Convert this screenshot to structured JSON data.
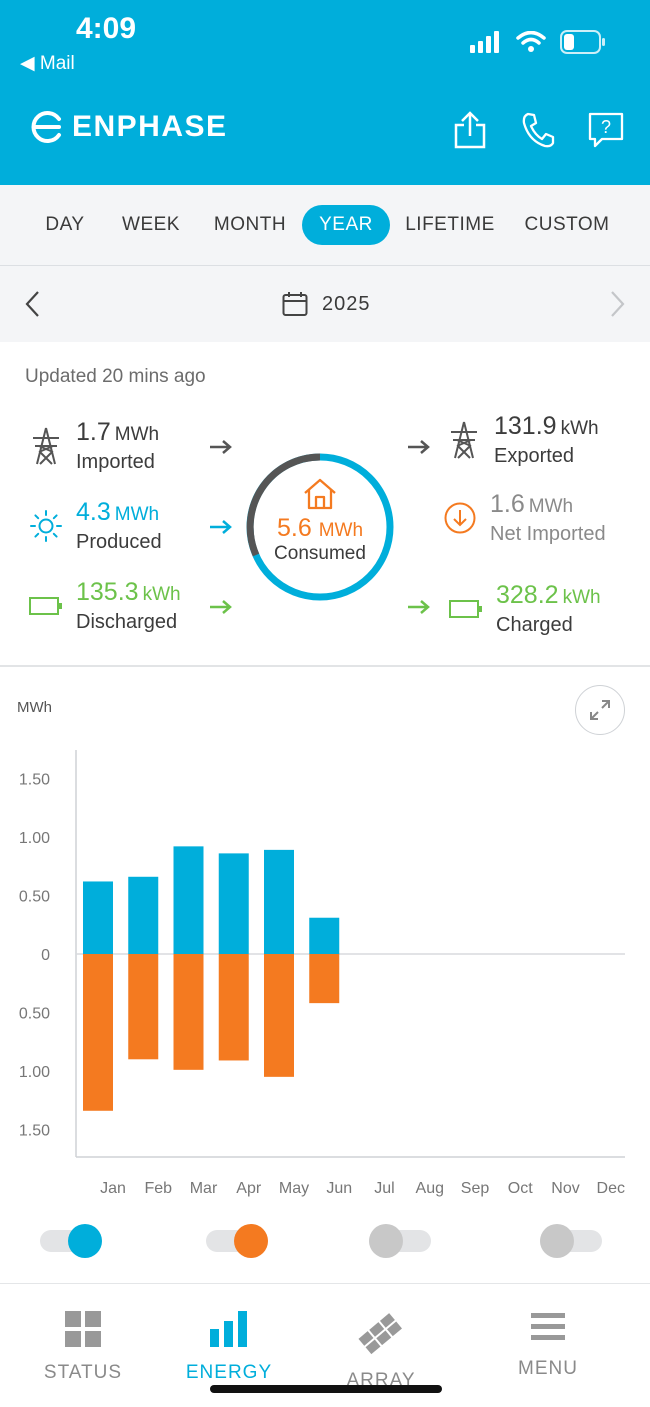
{
  "status_bar": {
    "time": "4:09",
    "back_label": "Mail"
  },
  "header": {
    "brand": "ENPHASE"
  },
  "tabs": [
    {
      "label": "DAY"
    },
    {
      "label": "WEEK"
    },
    {
      "label": "MONTH"
    },
    {
      "label": "YEAR",
      "active": true
    },
    {
      "label": "LIFETIME"
    },
    {
      "label": "CUSTOM"
    }
  ],
  "date_nav": {
    "year": "2025"
  },
  "summary": {
    "updated": "Updated 20 mins ago",
    "imported": {
      "value": "1.7",
      "unit": "MWh",
      "label": "Imported"
    },
    "produced": {
      "value": "4.3",
      "unit": "MWh",
      "label": "Produced"
    },
    "discharged": {
      "value": "135.3",
      "unit": "kWh",
      "label": "Discharged"
    },
    "consumed": {
      "value": "5.6",
      "unit": "MWh",
      "label": "Consumed"
    },
    "exported": {
      "value": "131.9",
      "unit": "kWh",
      "label": "Exported"
    },
    "net_imported": {
      "value": "1.6",
      "unit": "MWh",
      "label": "Net Imported"
    },
    "charged": {
      "value": "328.2",
      "unit": "kWh",
      "label": "Charged"
    }
  },
  "colors": {
    "brand": "#00aedb",
    "produced": "#00aedb",
    "consumed": "#f47a20",
    "battery": "#6cc24a",
    "grid": "#555555",
    "inactive": "#c8c8c8"
  },
  "chart_data": {
    "type": "bar",
    "ylabel": "MWh",
    "categories": [
      "Jan",
      "Feb",
      "Mar",
      "Apr",
      "May",
      "Jun",
      "Jul",
      "Aug",
      "Sep",
      "Oct",
      "Nov",
      "Dec"
    ],
    "y_ticks": [
      "1.50",
      "1.00",
      "0.50",
      "0",
      "0.50",
      "1.00",
      "1.50"
    ],
    "ylim": [
      -1.5,
      1.5
    ],
    "series": [
      {
        "values": [
          0.62,
          0.66,
          0.92,
          0.86,
          0.89,
          0.31,
          null,
          null,
          null,
          null,
          null,
          null
        ]
      },
      {
        "values": [
          -1.34,
          -0.9,
          -0.99,
          -0.91,
          -1.05,
          -0.42,
          null,
          null,
          null,
          null,
          null,
          null
        ]
      }
    ],
    "grid": false
  },
  "toggles": [
    {
      "on": true,
      "color": "#00aedb"
    },
    {
      "on": true,
      "color": "#f47a20"
    },
    {
      "on": false,
      "color": "#c8c8c8"
    },
    {
      "on": false,
      "color": "#c8c8c8"
    }
  ],
  "bottom_nav": [
    {
      "label": "STATUS",
      "icon": "grid-icon"
    },
    {
      "label": "ENERGY",
      "icon": "bar-chart-icon",
      "active": true
    },
    {
      "label": "ARRAY",
      "icon": "solar-array-icon"
    },
    {
      "label": "MENU",
      "icon": "hamburger-icon"
    }
  ]
}
